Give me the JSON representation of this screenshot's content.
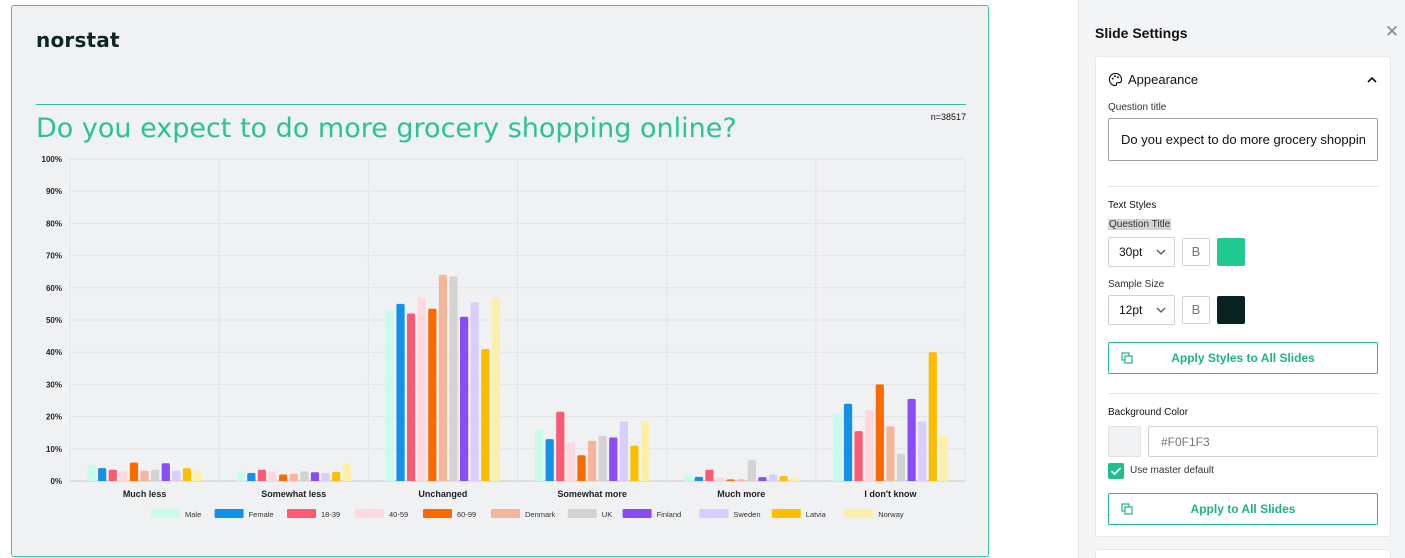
{
  "slide": {
    "logo": "norstat",
    "question_title": "Do you expect to do more grocery shopping online?",
    "sample_size": "n=38517",
    "title_color": "#2bc394",
    "background": "#F0F1F3"
  },
  "chart_data": {
    "type": "bar",
    "categories": [
      "Much less",
      "Somewhat less",
      "Unchanged",
      "Somewhat more",
      "Much more",
      "I don't know"
    ],
    "ylim": [
      0,
      100
    ],
    "yticks": [
      "100%",
      "90%",
      "80%",
      "70%",
      "60%",
      "50%",
      "40%",
      "30%",
      "20%",
      "10%",
      "0%"
    ],
    "grid": true,
    "legend_position": "bottom",
    "series": [
      {
        "name": "Male",
        "color": "#c8fbe9",
        "values": [
          5,
          3,
          53,
          16,
          2,
          21
        ]
      },
      {
        "name": "Female",
        "color": "#1192e8",
        "values": [
          4,
          2.5,
          55,
          13,
          1.3,
          24
        ]
      },
      {
        "name": "18-39",
        "color": "#fa5b72",
        "values": [
          3.5,
          3.5,
          52,
          21.5,
          3.5,
          15.5
        ]
      },
      {
        "name": "40-59",
        "color": "#ffd8dd",
        "values": [
          3,
          3,
          57,
          12,
          1,
          22
        ]
      },
      {
        "name": "60-99",
        "color": "#fa6a00",
        "values": [
          5.7,
          2,
          53.5,
          8,
          0.5,
          30
        ]
      },
      {
        "name": "Denmark",
        "color": "#f5b59b",
        "values": [
          3.2,
          2.2,
          64,
          12.5,
          0.5,
          17
        ]
      },
      {
        "name": "UK",
        "color": "#d3d3d3",
        "values": [
          3.5,
          3,
          63.5,
          14,
          6.5,
          8.5
        ]
      },
      {
        "name": "Finland",
        "color": "#8a4cf5",
        "values": [
          5.5,
          2.7,
          51,
          13.5,
          1.2,
          25.5
        ]
      },
      {
        "name": "Sweden",
        "color": "#d8cdfb",
        "values": [
          3.2,
          2.5,
          55.5,
          18.5,
          2,
          18.5
        ]
      },
      {
        "name": "Latvia",
        "color": "#fbbf00",
        "values": [
          4,
          2.8,
          41,
          11,
          1.5,
          40
        ]
      },
      {
        "name": "Norway",
        "color": "#fcefaa",
        "values": [
          3.2,
          5.5,
          57,
          18.5,
          1,
          14
        ]
      }
    ]
  },
  "panel": {
    "title": "Slide Settings",
    "close_icon": "close-icon",
    "appearance": {
      "label": "Appearance",
      "icon": "palette-icon",
      "question_title_label": "Question title",
      "question_title_value": "Do you expect to do more grocery shopping online?"
    },
    "text_styles": {
      "label": "Text Styles",
      "question_title": {
        "label": "Question Title",
        "size": "30pt",
        "bold": "B",
        "color": "#1fc98f"
      },
      "sample_size": {
        "label": "Sample Size",
        "size": "12pt",
        "bold": "B",
        "color": "#082121"
      }
    },
    "apply_styles_button": "Apply Styles to All Slides",
    "background": {
      "label": "Background Color",
      "swatch": "#F0F1F3",
      "hex_placeholder": "#F0F1F3",
      "use_master_label": "Use master default",
      "use_master_checked": true
    },
    "apply_all_button": "Apply to All Slides",
    "accent": "#1fbf8d"
  }
}
